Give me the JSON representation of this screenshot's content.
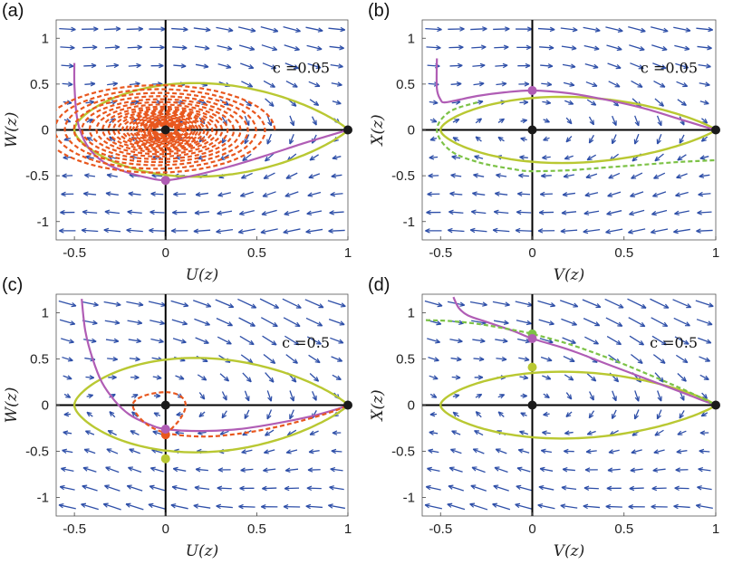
{
  "colors": {
    "quiver": "#2E4FA8",
    "yellow_curve": "#B9C832",
    "magenta_curve": "#B05DB5",
    "orange_dashed": "#E8571E",
    "green_dashed": "#7CC246",
    "equilibrium": "#1A1A1A",
    "axis_line": "#000000"
  },
  "chart_data": [
    {
      "type": "line",
      "panel": "(a)",
      "xlabel": "U(z)",
      "ylabel": "W(z)",
      "param_text": "c =0.05",
      "xlim": [
        -0.6,
        1.0
      ],
      "ylim": [
        -1.2,
        1.2
      ],
      "xticks": [
        -0.5,
        0,
        0.5,
        1
      ],
      "xticklabels": [
        "-0.5",
        "0",
        "0.5",
        "1"
      ],
      "yticks": [
        1,
        0.5,
        0,
        -0.5,
        -1
      ],
      "yticklabels": [
        "1",
        "0.5",
        "0",
        "-0.5",
        "-1"
      ],
      "homoclinic_loop": {
        "name": "homoclinic orbit",
        "color": "yellow",
        "style": "solid",
        "apex_x": 1.0,
        "left_x": -0.5,
        "half_height": 0.58
      },
      "series": [
        {
          "name": "trajectory",
          "color": "magenta",
          "style": "solid",
          "x": [
            -0.5,
            -0.5,
            -0.49,
            -0.47,
            -0.42,
            -0.34,
            -0.23,
            -0.1,
            0.0,
            0.15,
            0.35,
            0.55,
            0.75,
            0.9,
            1.0
          ],
          "y": [
            0.73,
            0.5,
            0.2,
            0.0,
            -0.2,
            -0.35,
            -0.45,
            -0.52,
            -0.55,
            -0.5,
            -0.4,
            -0.28,
            -0.15,
            -0.06,
            0.0
          ]
        },
        {
          "name": "spiral",
          "color": "orange",
          "style": "dashed",
          "kind": "spiral",
          "center": [
            0,
            0
          ],
          "start_radius_x": 0.65,
          "start_radius_y": 0.5,
          "decay_per_turn": 0.91,
          "turns": 26
        }
      ],
      "markers": [
        {
          "x": 0,
          "y": 0,
          "color": "orange"
        },
        {
          "x": 0,
          "y": 0,
          "color": "black"
        },
        {
          "x": 1,
          "y": 0,
          "color": "black"
        },
        {
          "x": 0,
          "y": -0.55,
          "color": "yellow"
        },
        {
          "x": 0,
          "y": -0.55,
          "color": "magenta"
        }
      ]
    },
    {
      "type": "line",
      "panel": "(b)",
      "xlabel": "V(z)",
      "ylabel": "X(z)",
      "param_text": "c =0.05",
      "xlim": [
        -0.6,
        1.0
      ],
      "ylim": [
        -1.2,
        1.2
      ],
      "xticks": [
        -0.5,
        0,
        0.5,
        1
      ],
      "xticklabels": [
        "-0.5",
        "0",
        "0.5",
        "1"
      ],
      "yticks": [
        1,
        0.5,
        0,
        -0.5,
        -1
      ],
      "yticklabels": [
        "1",
        "0.5",
        "0",
        "-0.5",
        "-1"
      ],
      "homoclinic_loop": {
        "name": "homoclinic orbit",
        "color": "yellow",
        "style": "solid",
        "apex_x": 1.0,
        "left_x": -0.5,
        "half_height": 0.41
      },
      "series": [
        {
          "name": "trajectory",
          "color": "magenta",
          "style": "solid",
          "x": [
            -0.52,
            -0.52,
            -0.5,
            -0.48,
            -0.42,
            -0.3,
            -0.15,
            0.0,
            0.2,
            0.4,
            0.6,
            0.8,
            0.93,
            1.0
          ],
          "y": [
            0.78,
            0.45,
            0.33,
            0.3,
            0.32,
            0.37,
            0.41,
            0.43,
            0.4,
            0.33,
            0.24,
            0.12,
            0.04,
            0.0
          ]
        },
        {
          "name": "stable manifold",
          "color": "green",
          "style": "dashed",
          "x": [
            -0.3,
            -0.45,
            -0.52,
            -0.45,
            -0.3,
            -0.1,
            0.0,
            0.2,
            0.4,
            0.6,
            0.8,
            1.0
          ],
          "y": [
            0.3,
            0.2,
            0.0,
            -0.22,
            -0.35,
            -0.43,
            -0.45,
            -0.44,
            -0.41,
            -0.38,
            -0.35,
            -0.33
          ]
        }
      ],
      "markers": [
        {
          "x": 0,
          "y": 0,
          "color": "black"
        },
        {
          "x": 1,
          "y": 0,
          "color": "black"
        },
        {
          "x": 0,
          "y": 0.43,
          "color": "magenta"
        }
      ]
    },
    {
      "type": "line",
      "panel": "(c)",
      "xlabel": "U(z)",
      "ylabel": "W(z)",
      "param_text": "c =0.5",
      "xlim": [
        -0.6,
        1.0
      ],
      "ylim": [
        -1.2,
        1.2
      ],
      "xticks": [
        -0.5,
        0,
        0.5,
        1
      ],
      "xticklabels": [
        "-0.5",
        "0",
        "0.5",
        "1"
      ],
      "yticks": [
        1,
        0.5,
        0,
        -0.5,
        -1
      ],
      "yticklabels": [
        "1",
        "0.5",
        "0",
        "-0.5",
        "-1"
      ],
      "homoclinic_loop": {
        "name": "homoclinic orbit",
        "color": "yellow",
        "style": "solid",
        "apex_x": 1.0,
        "left_x": -0.5,
        "half_height": 0.58
      },
      "series": [
        {
          "name": "trajectory",
          "color": "magenta",
          "style": "solid",
          "x": [
            -0.46,
            -0.44,
            -0.4,
            -0.35,
            -0.28,
            -0.2,
            -0.1,
            0.0,
            0.2,
            0.4,
            0.6,
            0.8,
            0.93,
            1.0
          ],
          "y": [
            1.15,
            0.8,
            0.5,
            0.25,
            0.05,
            -0.1,
            -0.2,
            -0.26,
            -0.28,
            -0.26,
            -0.2,
            -0.12,
            -0.05,
            0.0
          ]
        },
        {
          "name": "spiral",
          "color": "orange",
          "style": "dashed",
          "x": [
            0.0,
            0.08,
            0.11,
            0.08,
            0.0,
            -0.12,
            -0.18,
            -0.12,
            0.0,
            0.2,
            0.4,
            0.6,
            0.8,
            0.93,
            1.0
          ],
          "y": [
            -0.32,
            -0.15,
            0.0,
            0.1,
            0.14,
            0.1,
            0.0,
            -0.18,
            -0.3,
            -0.34,
            -0.31,
            -0.24,
            -0.14,
            -0.06,
            0.0
          ]
        }
      ],
      "markers": [
        {
          "x": 0,
          "y": 0,
          "color": "black"
        },
        {
          "x": 1,
          "y": 0,
          "color": "black"
        },
        {
          "x": 0,
          "y": -0.58,
          "color": "yellow"
        },
        {
          "x": 0,
          "y": -0.32,
          "color": "orange"
        },
        {
          "x": 0,
          "y": -0.26,
          "color": "magenta"
        }
      ]
    },
    {
      "type": "line",
      "panel": "(d)",
      "xlabel": "V(z)",
      "ylabel": "X(z)",
      "param_text": "c =0.5",
      "xlim": [
        -0.6,
        1.0
      ],
      "ylim": [
        -1.2,
        1.2
      ],
      "xticks": [
        -0.5,
        0,
        0.5,
        1
      ],
      "xticklabels": [
        "-0.5",
        "0",
        "0.5",
        "1"
      ],
      "yticks": [
        1,
        0.5,
        0,
        -0.5,
        -1
      ],
      "yticklabels": [
        "1",
        "0.5",
        "0",
        "-0.5",
        "-1"
      ],
      "homoclinic_loop": {
        "name": "homoclinic orbit",
        "color": "yellow",
        "style": "solid",
        "apex_x": 1.0,
        "left_x": -0.5,
        "half_height": 0.41
      },
      "series": [
        {
          "name": "trajectory",
          "color": "magenta",
          "style": "solid",
          "x": [
            -0.43,
            -0.4,
            -0.35,
            -0.25,
            -0.1,
            0.0,
            0.2,
            0.4,
            0.6,
            0.8,
            0.93,
            1.0
          ],
          "y": [
            1.17,
            1.05,
            0.97,
            0.9,
            0.8,
            0.72,
            0.6,
            0.45,
            0.3,
            0.15,
            0.05,
            0.0
          ]
        },
        {
          "name": "unstable manifold",
          "color": "green",
          "style": "dashed",
          "x": [
            -0.58,
            -0.45,
            -0.3,
            -0.15,
            0.0,
            0.2,
            0.4,
            0.6,
            0.8,
            0.93,
            1.0
          ],
          "y": [
            0.92,
            0.91,
            0.88,
            0.83,
            0.77,
            0.66,
            0.52,
            0.36,
            0.19,
            0.07,
            0.0
          ]
        }
      ],
      "markers": [
        {
          "x": 0,
          "y": 0,
          "color": "black"
        },
        {
          "x": 1,
          "y": 0,
          "color": "black"
        },
        {
          "x": 0,
          "y": 0.41,
          "color": "yellow"
        },
        {
          "x": 0,
          "y": 0.77,
          "color": "green"
        },
        {
          "x": 0,
          "y": 0.72,
          "color": "magenta"
        }
      ]
    }
  ]
}
